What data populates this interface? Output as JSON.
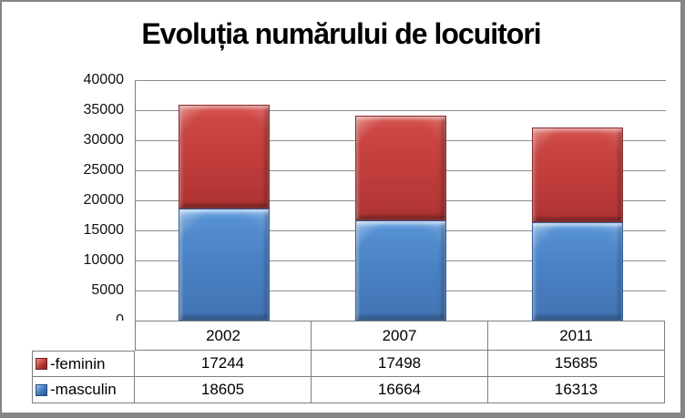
{
  "title": "Evoluția numărului de locuitori",
  "chart_data": {
    "type": "bar",
    "stacked": true,
    "title": "Evoluția numărului de locuitori",
    "categories": [
      "2002",
      "2007",
      "2011"
    ],
    "series": [
      {
        "name": "-masculin",
        "color": "#4A82C6",
        "values": [
          18605,
          16664,
          16313
        ]
      },
      {
        "name": "-feminin",
        "color": "#C33F3D",
        "values": [
          17244,
          17498,
          15685
        ]
      }
    ],
    "ylim": [
      0,
      40000
    ],
    "ytick_step": 5000,
    "yticks": [
      "40000",
      "35000",
      "30000",
      "25000",
      "20000",
      "15000",
      "10000",
      "5000",
      "0"
    ],
    "grid": "horizontal",
    "legend_position": "bottom-table"
  },
  "table": {
    "header": [
      "2002",
      "2007",
      "2011"
    ],
    "rows": [
      {
        "label": "-feminin",
        "color": "#C33F3D",
        "values": [
          "17244",
          "17498",
          "15685"
        ]
      },
      {
        "label": "-masculin",
        "color": "#4A82C6",
        "values": [
          "18605",
          "16664",
          "16313"
        ]
      }
    ]
  }
}
